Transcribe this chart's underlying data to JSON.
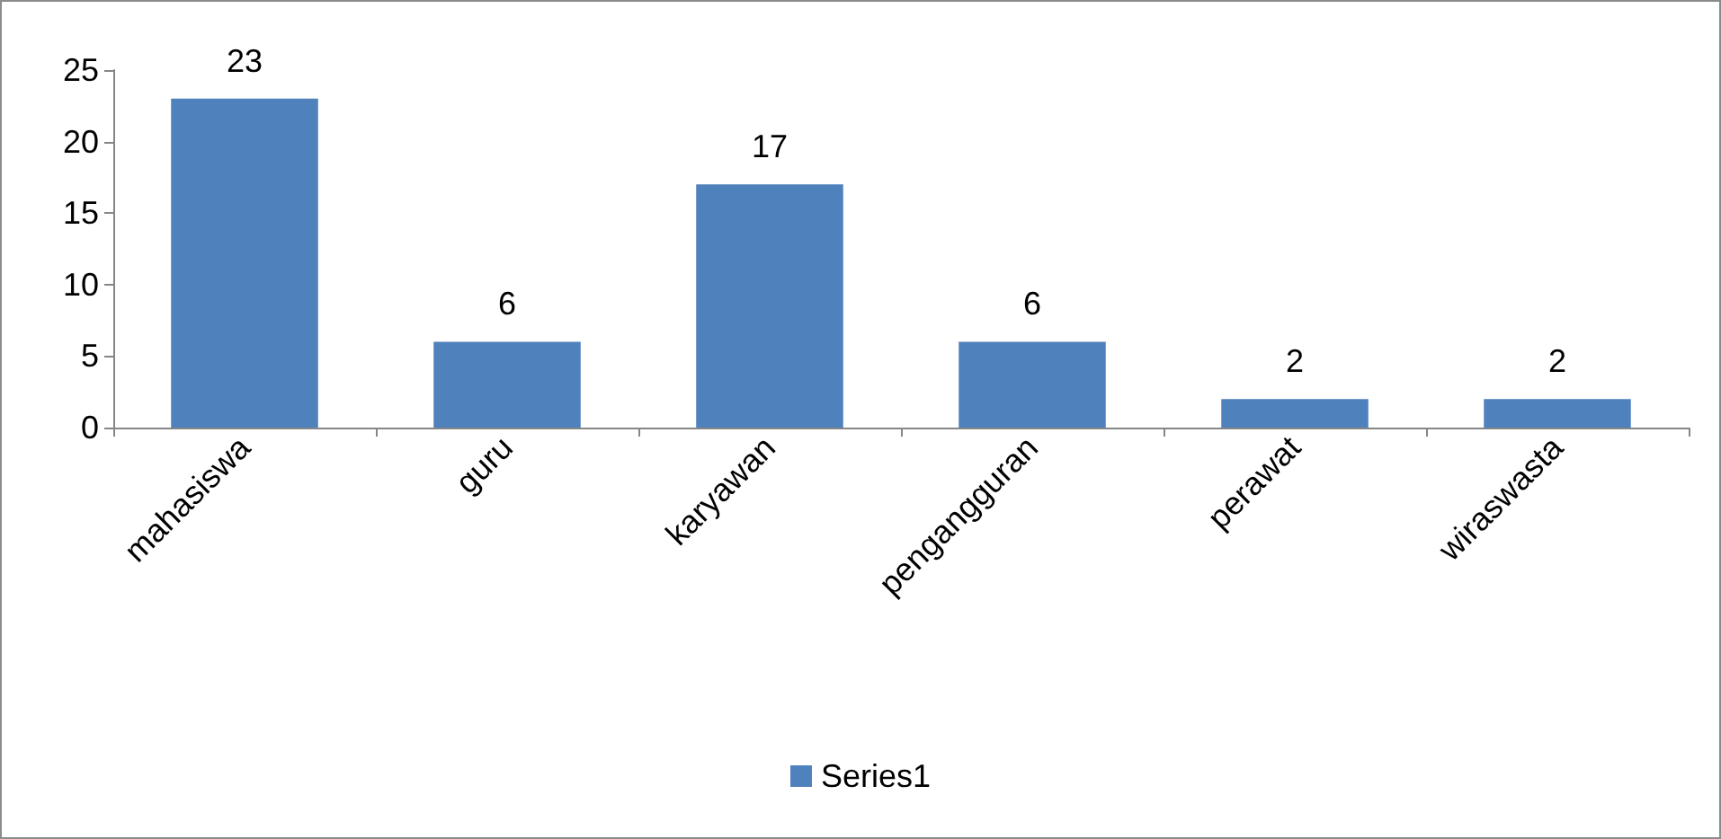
{
  "chart_data": {
    "type": "bar",
    "categories": [
      "mahasiswa",
      "guru",
      "karyawan",
      "pengangguran",
      "perawat",
      "wiraswasta"
    ],
    "series": [
      {
        "name": "Series1",
        "color": "#4f81bd",
        "values": [
          23,
          6,
          17,
          6,
          2,
          2
        ]
      }
    ],
    "ylim": [
      0,
      25
    ],
    "yticks": [
      0,
      5,
      10,
      15,
      20,
      25
    ],
    "grid": false,
    "legend": "bottom",
    "data_labels": true
  }
}
